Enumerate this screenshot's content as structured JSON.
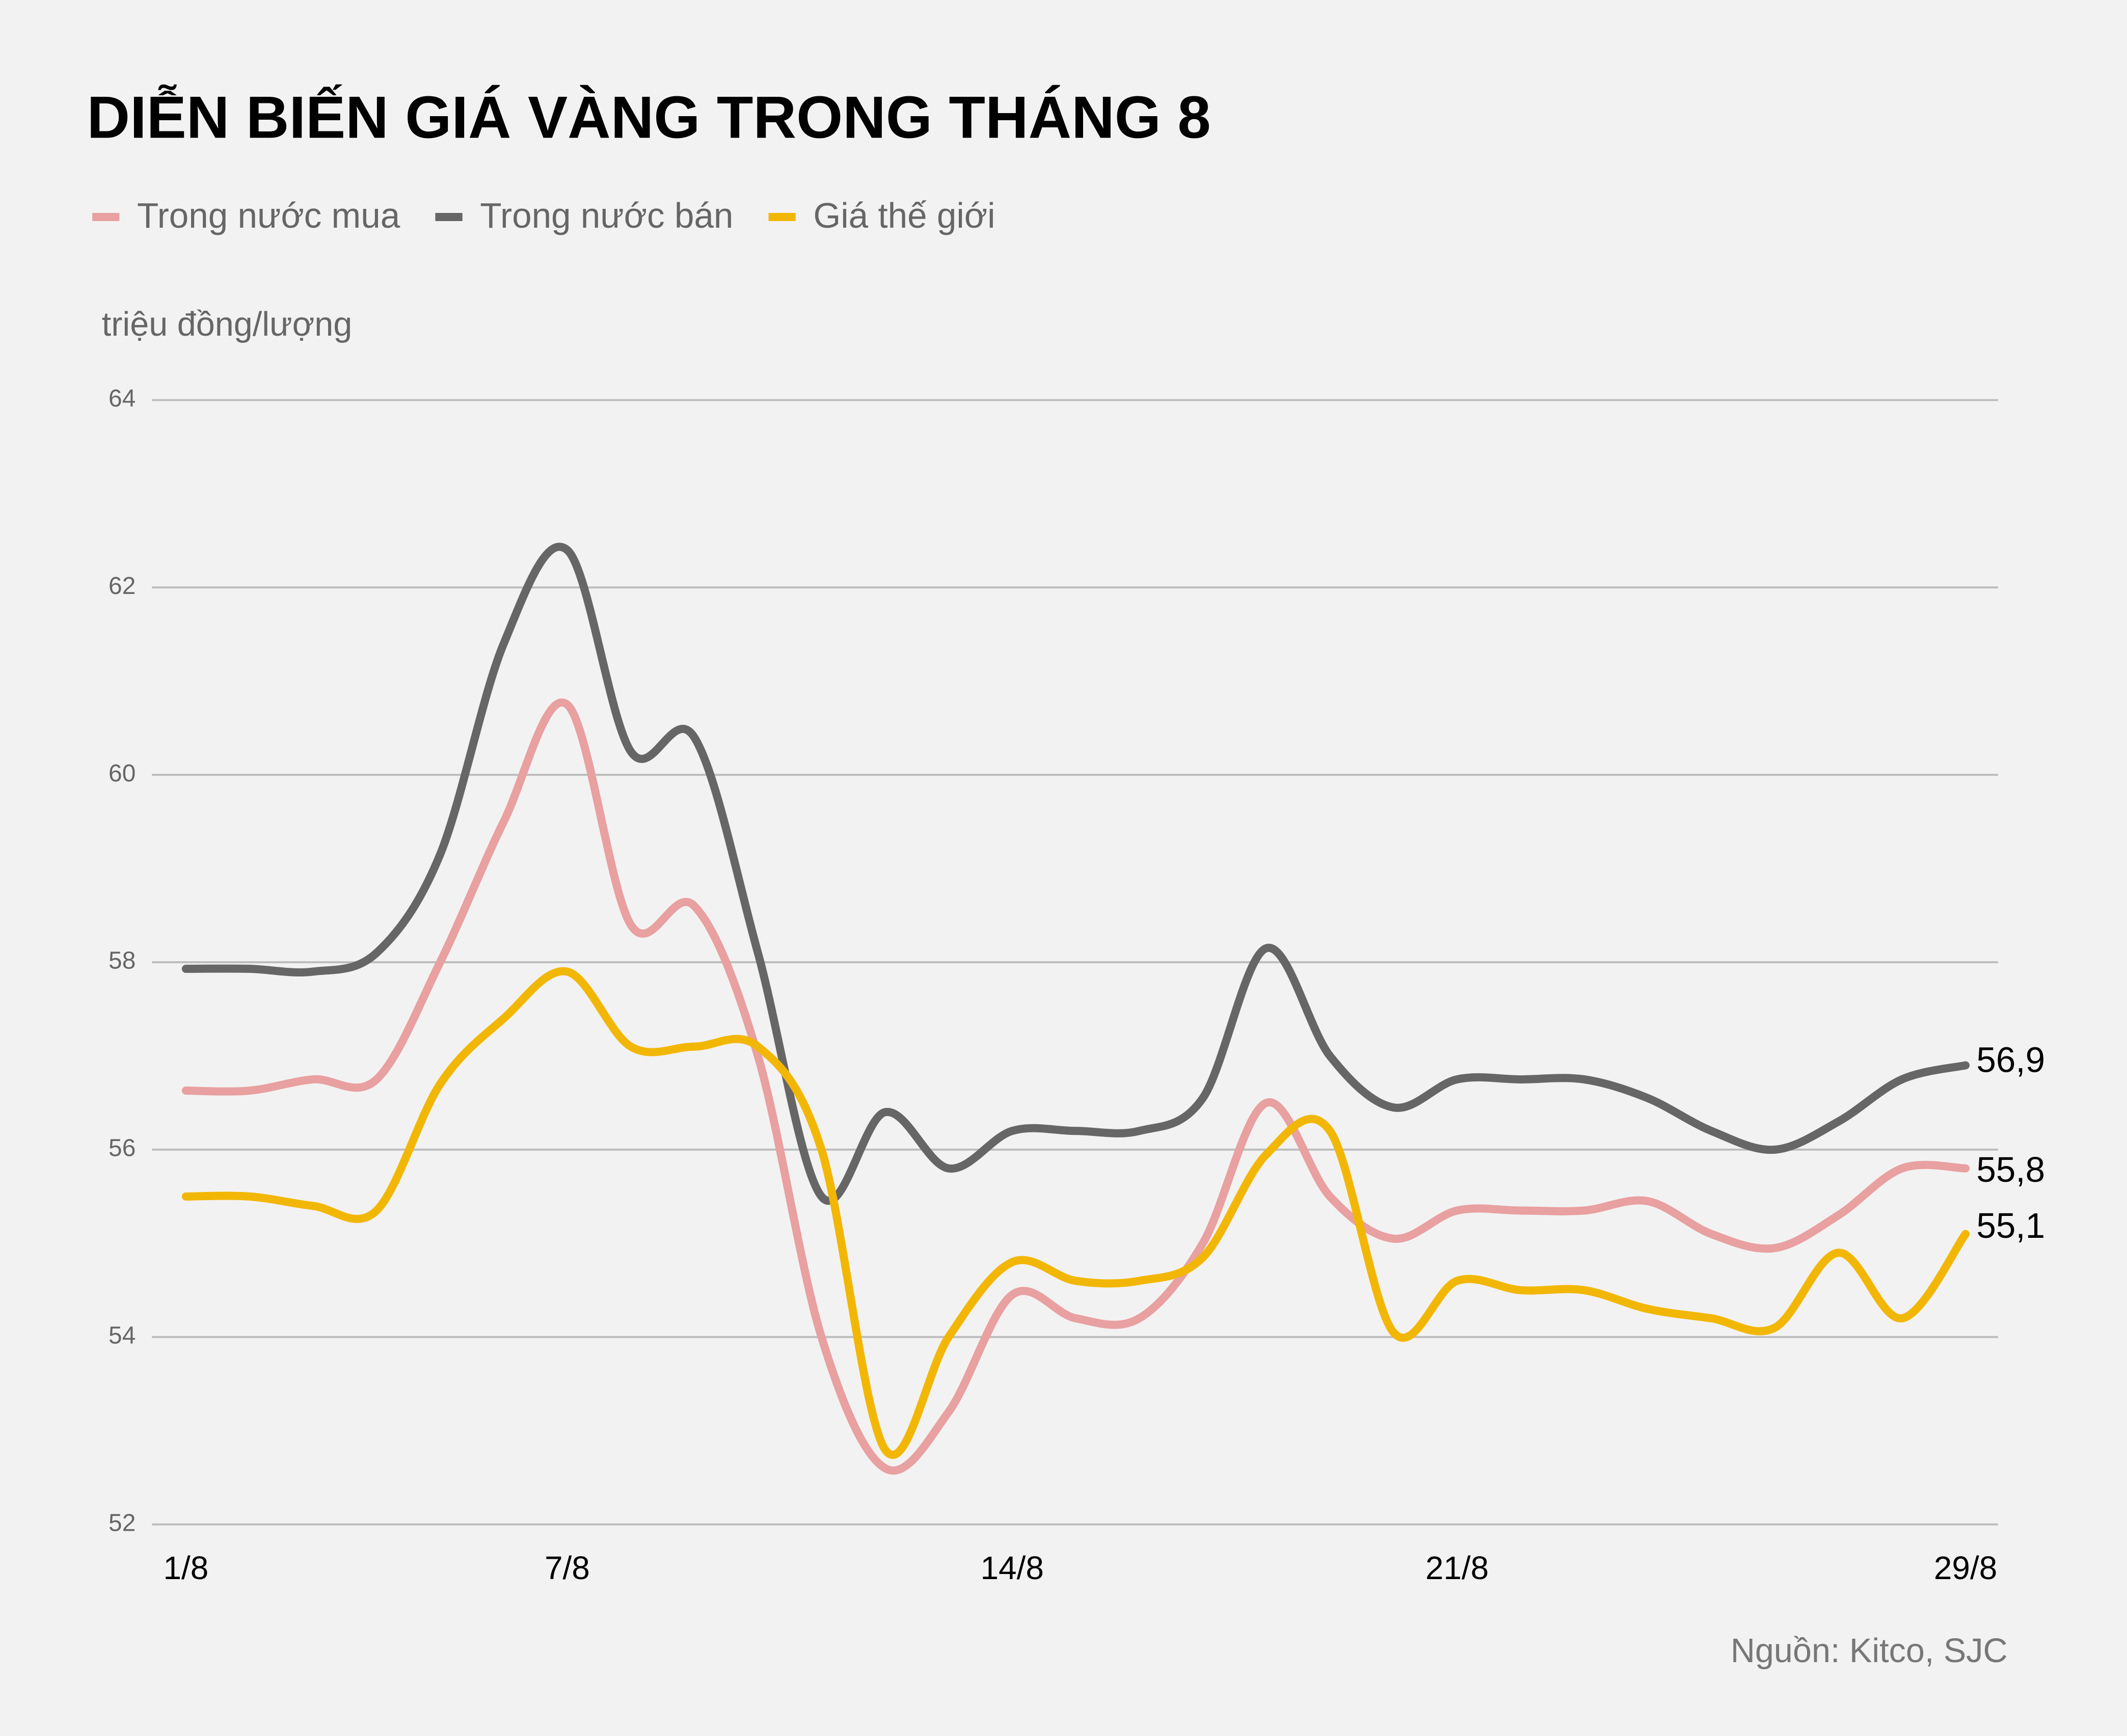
{
  "chart_data": {
    "type": "line",
    "title": "DIỄN BIẾN GIÁ VÀNG TRONG THÁNG 8",
    "y_axis_label": "triệu đồng/lượng",
    "source": "Nguồn: Kitco, SJC",
    "categories": [
      "1/8",
      null,
      null,
      null,
      null,
      null,
      "7/8",
      null,
      null,
      null,
      null,
      null,
      null,
      "14/8",
      null,
      null,
      null,
      null,
      null,
      null,
      "21/8",
      null,
      null,
      null,
      null,
      null,
      null,
      null,
      "29/8"
    ],
    "series": [
      {
        "name": "Trong nước mua",
        "color": "#e8a0a0",
        "values": [
          56.63,
          56.63,
          56.75,
          56.75,
          58.0,
          59.5,
          60.75,
          58.4,
          58.6,
          57.0,
          54.0,
          52.6,
          53.2,
          54.45,
          54.2,
          54.2,
          55.0,
          56.5,
          55.5,
          55.05,
          55.35,
          55.35,
          55.35,
          55.45,
          55.1,
          54.95,
          55.3,
          55.8,
          55.8
        ],
        "value_labels": [
          null,
          null,
          null,
          null,
          null,
          null,
          null,
          null,
          null,
          null,
          null,
          null,
          null,
          null,
          null,
          null,
          null,
          null,
          null,
          null,
          null,
          null,
          null,
          null,
          null,
          null,
          null,
          null,
          "55,8"
        ]
      },
      {
        "name": "Trong nước bán",
        "color": "#666666",
        "values": [
          57.93,
          57.93,
          57.9,
          58.1,
          59.15,
          61.4,
          62.4,
          60.25,
          60.4,
          58.1,
          55.5,
          56.4,
          55.8,
          56.2,
          56.2,
          56.2,
          56.55,
          58.15,
          57.0,
          56.45,
          56.75,
          56.75,
          56.75,
          56.55,
          56.2,
          56.0,
          56.3,
          56.75,
          56.9
        ],
        "value_labels": [
          null,
          null,
          null,
          null,
          null,
          null,
          null,
          null,
          null,
          null,
          null,
          null,
          null,
          null,
          null,
          null,
          null,
          null,
          null,
          null,
          null,
          null,
          null,
          null,
          null,
          null,
          null,
          null,
          "56,9"
        ]
      },
      {
        "name": "Giá thế giới",
        "color": "#f2b705",
        "values": [
          55.5,
          55.5,
          55.4,
          55.35,
          56.7,
          57.4,
          57.9,
          57.1,
          57.1,
          57.1,
          56.0,
          52.8,
          54.0,
          54.8,
          54.6,
          54.6,
          54.85,
          55.95,
          56.2,
          54.05,
          54.6,
          54.5,
          54.5,
          54.3,
          54.2,
          54.1,
          54.9,
          54.2,
          55.1
        ],
        "value_labels": [
          null,
          null,
          null,
          null,
          null,
          null,
          null,
          null,
          null,
          null,
          null,
          null,
          null,
          null,
          null,
          null,
          null,
          null,
          null,
          null,
          null,
          null,
          null,
          null,
          null,
          null,
          null,
          null,
          "55,1"
        ]
      }
    ],
    "ylim": [
      52,
      64
    ],
    "yticks": [
      52,
      54,
      56,
      58,
      60,
      62,
      64
    ],
    "grid": true
  }
}
